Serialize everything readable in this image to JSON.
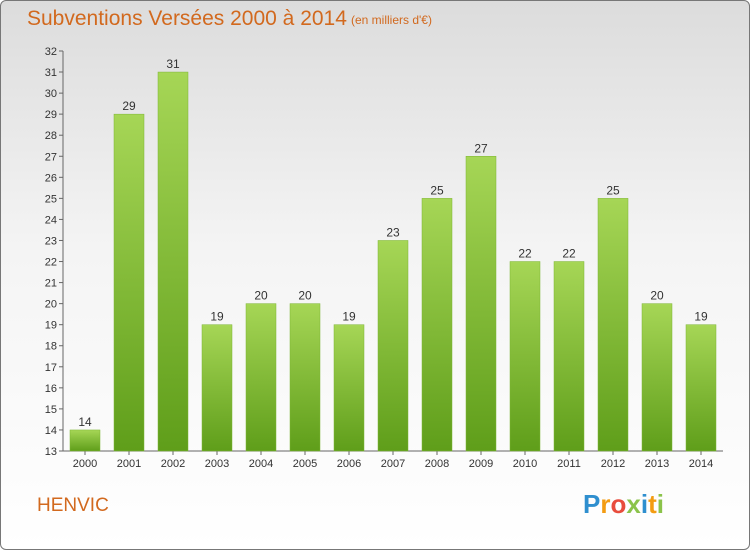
{
  "header": {
    "title": "Subventions Versées 2000 à 2014",
    "unit": "(en milliers d'€)"
  },
  "footer": {
    "place": "HENVIC",
    "logo": "Proxiti"
  },
  "colors": {
    "bar_light": "#a6d656",
    "bar_dark": "#5f9e1a",
    "text_accent": "#d2691e"
  },
  "chart_data": {
    "type": "bar",
    "title": "Subventions Versées 2000 à 2014",
    "subtitle": "(en milliers d'€)",
    "categories": [
      "2000",
      "2001",
      "2002",
      "2003",
      "2004",
      "2005",
      "2006",
      "2007",
      "2008",
      "2009",
      "2010",
      "2011",
      "2012",
      "2013",
      "2014"
    ],
    "values": [
      14,
      29,
      31,
      19,
      20,
      20,
      19,
      23,
      25,
      27,
      22,
      22,
      25,
      20,
      19
    ],
    "ylim": [
      13,
      32
    ],
    "yticks": [
      13,
      14,
      15,
      16,
      17,
      18,
      19,
      20,
      21,
      22,
      23,
      24,
      25,
      26,
      27,
      28,
      29,
      30,
      31,
      32
    ],
    "grid": false,
    "legend": "none"
  }
}
